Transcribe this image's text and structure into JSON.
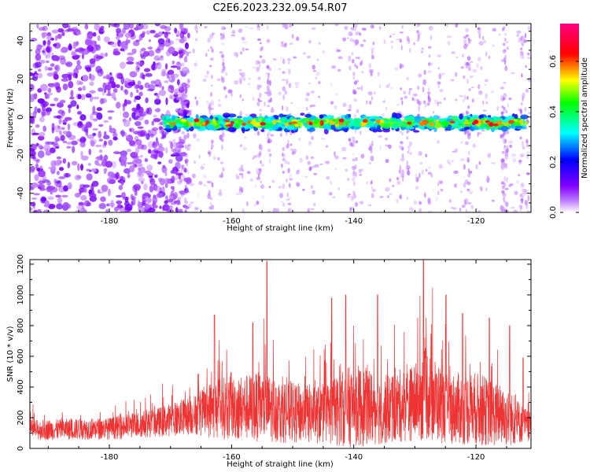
{
  "title": "C2E6.2023.232.09.54.R07",
  "chart_data": [
    {
      "type": "heatmap",
      "xlabel": "Height of straight line (km)",
      "ylabel": "Frequency (Hz)",
      "xlim": [
        -193,
        -111
      ],
      "ylim": [
        -50,
        49
      ],
      "x_ticks": [
        -180,
        -160,
        -140,
        -120
      ],
      "y_ticks": [
        -40,
        -20,
        0,
        20,
        40
      ],
      "colorbar": {
        "label": "Normalized spectral amplitude",
        "range": [
          0,
          0.75
        ],
        "ticks": [
          0.0,
          0.2,
          0.4,
          0.6
        ],
        "colors": [
          "#ffffff",
          "#8000ff",
          "#0000ff",
          "#00ffff",
          "#00ff00",
          "#ffff00",
          "#ff0000",
          "#ff0080"
        ]
      },
      "band": {
        "center_hz": -3,
        "half_width_hz": 5,
        "x_start_km": -171,
        "x_end_km": -112,
        "peak_amplitude": 0.7
      },
      "noise_dense_region_km": [
        -193,
        -170
      ]
    },
    {
      "type": "line",
      "xlabel": "Height of straight line (km)",
      "ylabel": "SNR (10 * v/v)",
      "xlim": [
        -193,
        -111
      ],
      "ylim": [
        0,
        1230
      ],
      "x_ticks": [
        -180,
        -160,
        -140,
        -120
      ],
      "y_ticks": [
        0,
        200,
        400,
        600,
        800,
        1000,
        1200
      ],
      "color": "#ee3333",
      "envelope": [
        {
          "x": -193,
          "base": 120,
          "amp": 110
        },
        {
          "x": -180,
          "base": 130,
          "amp": 120
        },
        {
          "x": -172,
          "base": 170,
          "amp": 160
        },
        {
          "x": -166,
          "base": 220,
          "amp": 220
        },
        {
          "x": -163,
          "base": 260,
          "amp": 330
        },
        {
          "x": -155,
          "base": 270,
          "amp": 380
        },
        {
          "x": -150,
          "base": 230,
          "amp": 330
        },
        {
          "x": -145,
          "base": 220,
          "amp": 320
        },
        {
          "x": -140,
          "base": 280,
          "amp": 460
        },
        {
          "x": -135,
          "base": 250,
          "amp": 380
        },
        {
          "x": -130,
          "base": 300,
          "amp": 420
        },
        {
          "x": -128,
          "base": 360,
          "amp": 520
        },
        {
          "x": -125,
          "base": 260,
          "amp": 380
        },
        {
          "x": -120,
          "base": 260,
          "amp": 400
        },
        {
          "x": -115,
          "base": 200,
          "amp": 320
        },
        {
          "x": -111,
          "base": 140,
          "amp": 150
        }
      ],
      "spikes": [
        {
          "x": -162.8,
          "y": 870
        },
        {
          "x": -156.5,
          "y": 820
        },
        {
          "x": -154.2,
          "y": 1220
        },
        {
          "x": -143.6,
          "y": 980
        },
        {
          "x": -141.3,
          "y": 1000
        },
        {
          "x": -136.1,
          "y": 1000
        },
        {
          "x": -128.6,
          "y": 1230
        },
        {
          "x": -124.9,
          "y": 1000
        },
        {
          "x": -122.2,
          "y": 880
        },
        {
          "x": -117.8,
          "y": 850
        },
        {
          "x": -114.5,
          "y": 800
        },
        {
          "x": -112.3,
          "y": 590
        }
      ]
    }
  ]
}
